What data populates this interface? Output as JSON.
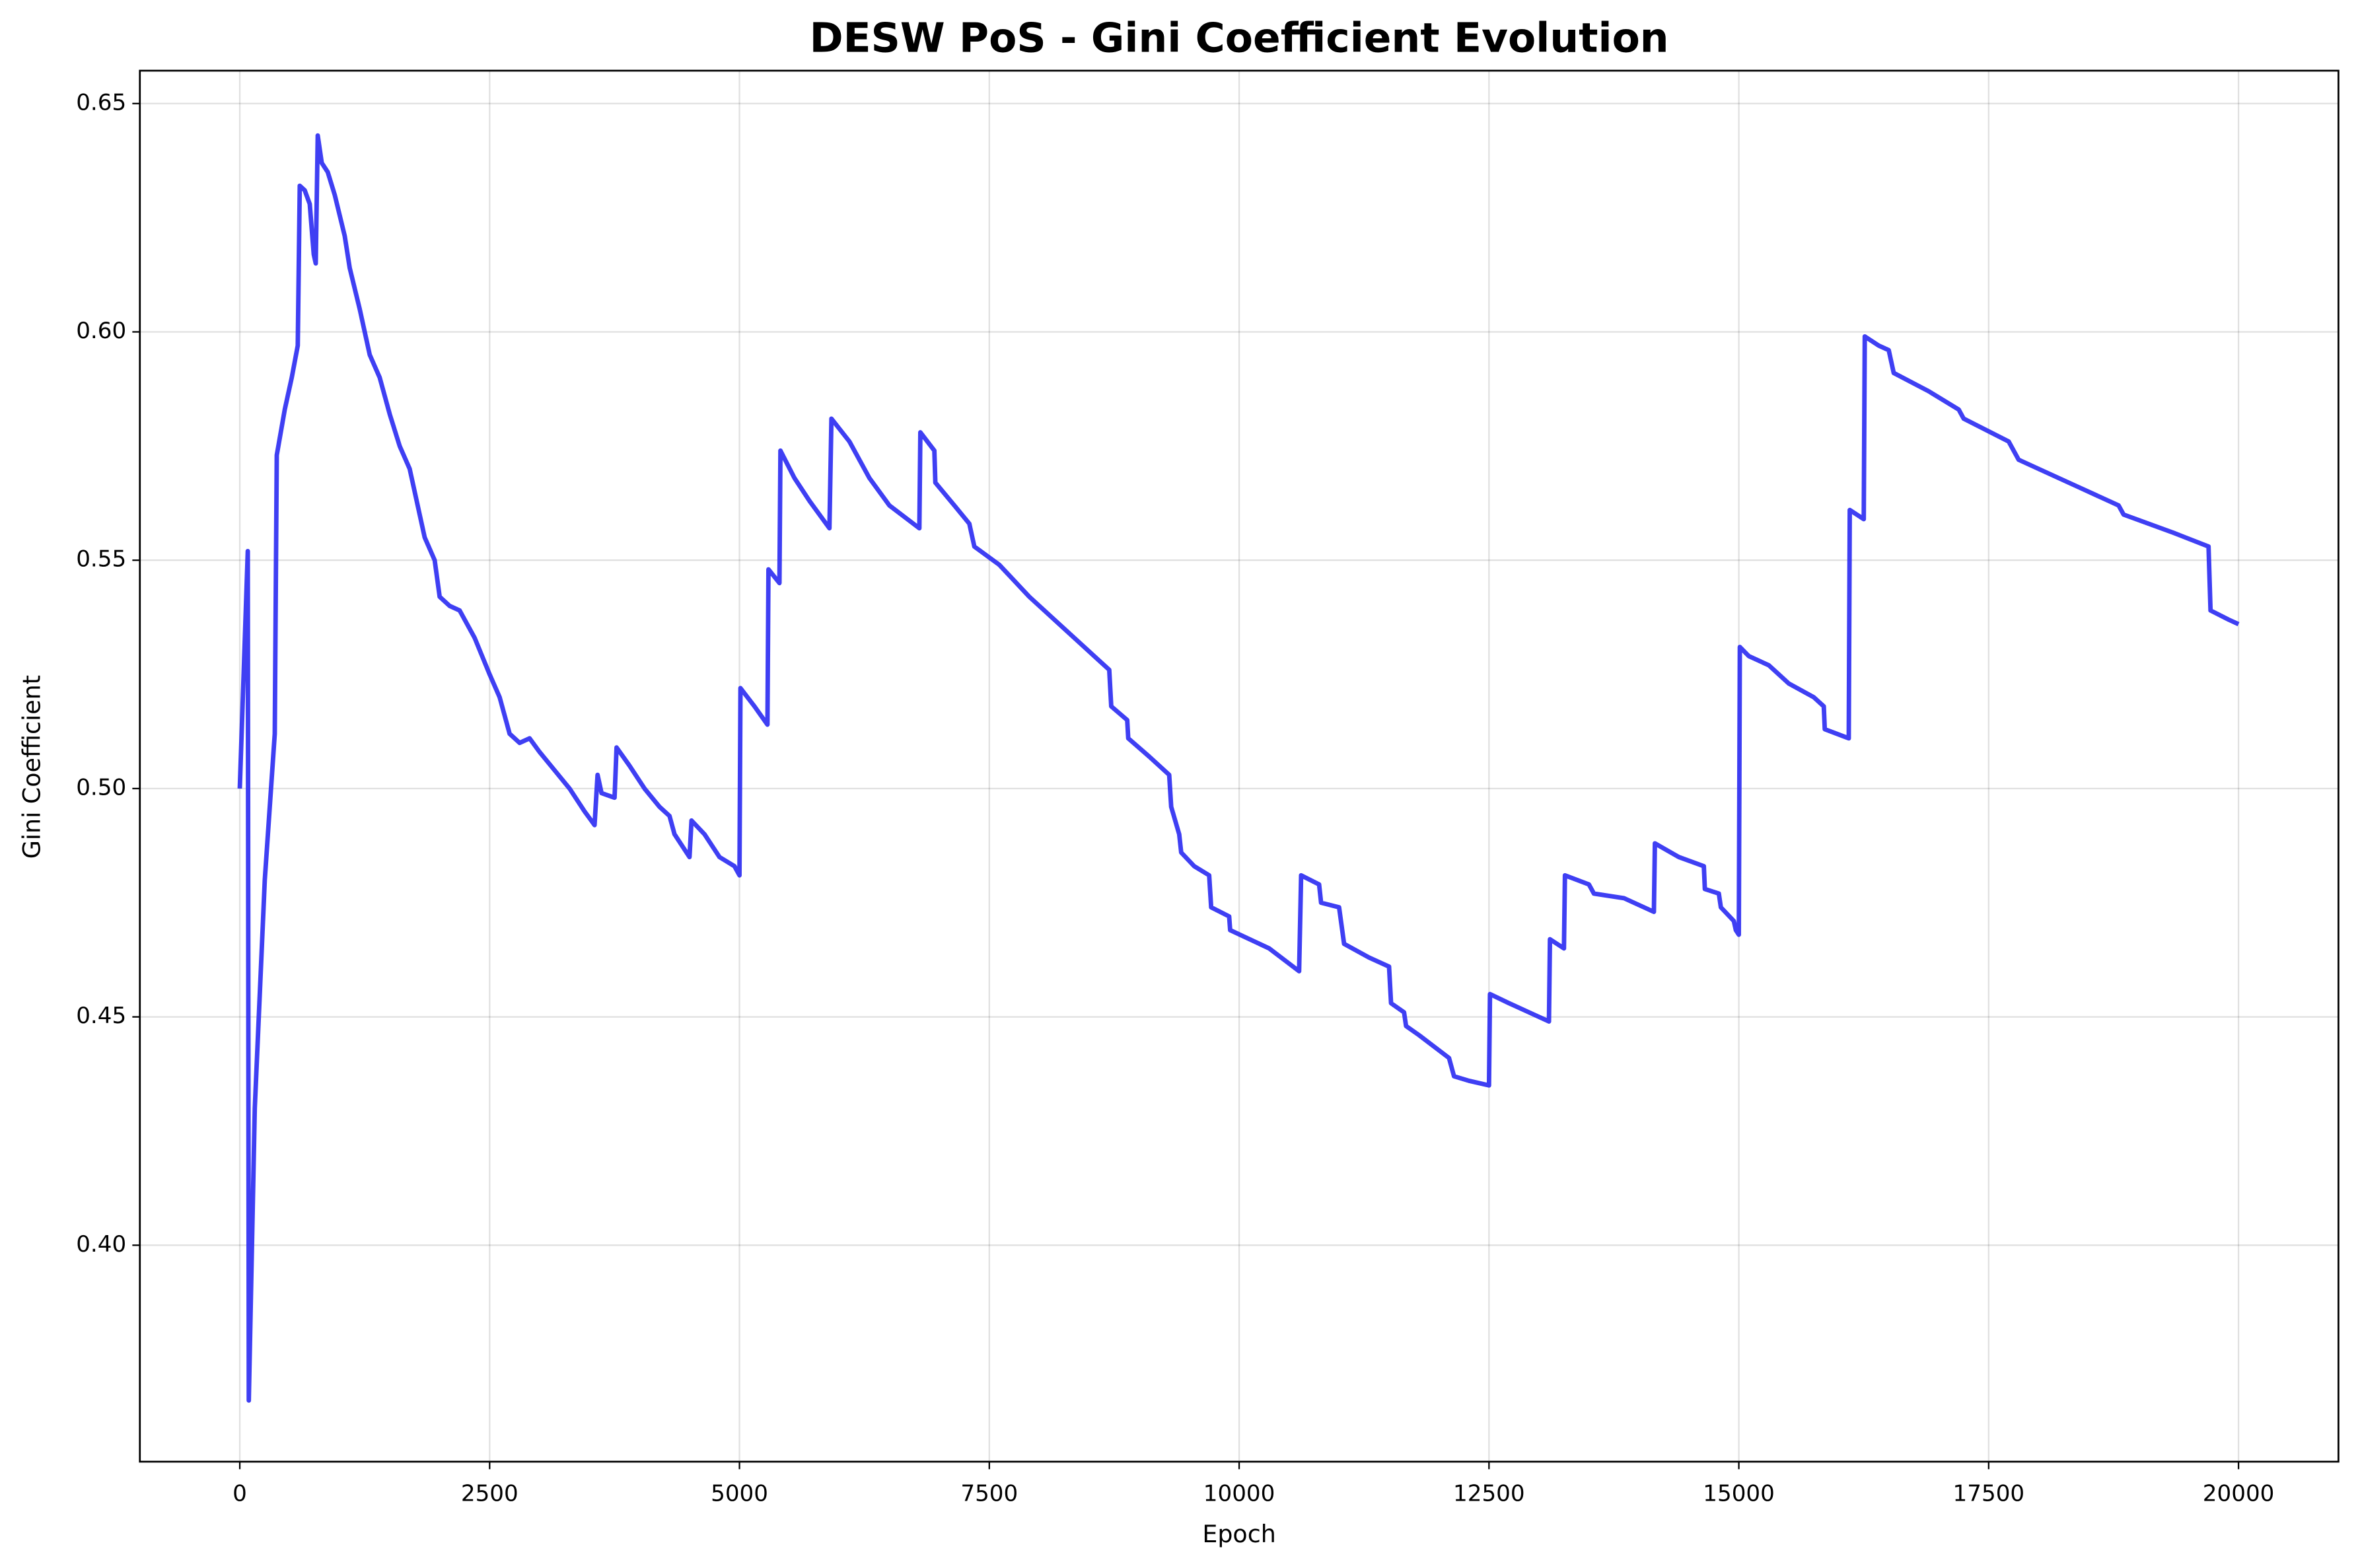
{
  "chart_data": {
    "type": "line",
    "title": "DESW PoS - Gini Coefficient Evolution",
    "xlabel": "Epoch",
    "ylabel": "Gini Coefficient",
    "x": [
      0,
      80,
      90,
      150,
      250,
      350,
      370,
      450,
      520,
      580,
      600,
      650,
      700,
      740,
      760,
      780,
      820,
      880,
      950,
      1050,
      1100,
      1200,
      1300,
      1400,
      1500,
      1600,
      1700,
      1800,
      1850,
      1950,
      2000,
      2100,
      2200,
      2350,
      2500,
      2600,
      2700,
      2800,
      2900,
      3000,
      3150,
      3300,
      3450,
      3550,
      3580,
      3620,
      3750,
      3770,
      3900,
      4050,
      4200,
      4300,
      4350,
      4500,
      4520,
      4650,
      4800,
      4950,
      5000,
      5010,
      5150,
      5280,
      5290,
      5400,
      5410,
      5550,
      5700,
      5900,
      5920,
      6100,
      6300,
      6500,
      6800,
      6810,
      6950,
      6960,
      7150,
      7300,
      7350,
      7600,
      7900,
      8200,
      8500,
      8700,
      8720,
      8880,
      8890,
      9100,
      9300,
      9320,
      9400,
      9420,
      9550,
      9700,
      9720,
      9900,
      9910,
      10300,
      10600,
      10620,
      10800,
      10820,
      11000,
      11050,
      11300,
      11500,
      11520,
      11650,
      11670,
      11800,
      12100,
      12150,
      12300,
      12500,
      12510,
      12700,
      12900,
      13100,
      13110,
      13250,
      13260,
      13500,
      13550,
      13850,
      14150,
      14160,
      14400,
      14650,
      14660,
      14800,
      14820,
      14950,
      14970,
      15000,
      15010,
      15100,
      15300,
      15500,
      15750,
      15850,
      15860,
      16100,
      16110,
      16250,
      16260,
      16400,
      16500,
      16550,
      16900,
      17200,
      17250,
      17700,
      17800,
      18000,
      18400,
      18800,
      18850,
      19350,
      19700,
      19720,
      19900,
      20000
    ],
    "series": [
      {
        "name": "Gini Coefficient",
        "color": "#2a2af2",
        "values": [
          0.5,
          0.552,
          0.366,
          0.43,
          0.48,
          0.512,
          0.573,
          0.583,
          0.59,
          0.597,
          0.632,
          0.631,
          0.628,
          0.617,
          0.615,
          0.643,
          0.637,
          0.635,
          0.63,
          0.621,
          0.614,
          0.605,
          0.595,
          0.59,
          0.582,
          0.575,
          0.57,
          0.56,
          0.555,
          0.55,
          0.542,
          0.54,
          0.539,
          0.533,
          0.525,
          0.52,
          0.512,
          0.51,
          0.511,
          0.508,
          0.504,
          0.5,
          0.495,
          0.492,
          0.503,
          0.499,
          0.498,
          0.509,
          0.505,
          0.5,
          0.496,
          0.494,
          0.49,
          0.485,
          0.493,
          0.49,
          0.485,
          0.483,
          0.481,
          0.522,
          0.518,
          0.514,
          0.548,
          0.545,
          0.574,
          0.568,
          0.563,
          0.557,
          0.581,
          0.576,
          0.568,
          0.562,
          0.557,
          0.578,
          0.574,
          0.567,
          0.562,
          0.558,
          0.553,
          0.549,
          0.542,
          0.536,
          0.53,
          0.526,
          0.518,
          0.515,
          0.511,
          0.507,
          0.503,
          0.496,
          0.49,
          0.486,
          0.483,
          0.481,
          0.474,
          0.472,
          0.469,
          0.465,
          0.46,
          0.481,
          0.479,
          0.475,
          0.474,
          0.466,
          0.463,
          0.461,
          0.453,
          0.451,
          0.448,
          0.446,
          0.441,
          0.437,
          0.436,
          0.435,
          0.455,
          0.453,
          0.451,
          0.449,
          0.467,
          0.465,
          0.481,
          0.479,
          0.477,
          0.476,
          0.473,
          0.488,
          0.485,
          0.483,
          0.478,
          0.477,
          0.474,
          0.471,
          0.469,
          0.468,
          0.531,
          0.529,
          0.527,
          0.523,
          0.52,
          0.518,
          0.513,
          0.511,
          0.561,
          0.559,
          0.599,
          0.597,
          0.596,
          0.591,
          0.587,
          0.583,
          0.581,
          0.576,
          0.572,
          0.57,
          0.566,
          0.562,
          0.56,
          0.556,
          0.553,
          0.539,
          0.537,
          0.536
        ]
      }
    ],
    "xlim": [
      -1000,
      21000
    ],
    "ylim": [
      0.3526,
      0.6572
    ],
    "xticks": [
      0,
      2500,
      5000,
      7500,
      10000,
      12500,
      15000,
      17500,
      20000
    ],
    "yticks": [
      {
        "value": 0.4,
        "label": "0.40"
      },
      0.45,
      {
        "value": 0.5,
        "label": "0.50"
      },
      0.55,
      {
        "value": 0.6,
        "label": "0.60"
      },
      0.65
    ],
    "grid": true
  }
}
